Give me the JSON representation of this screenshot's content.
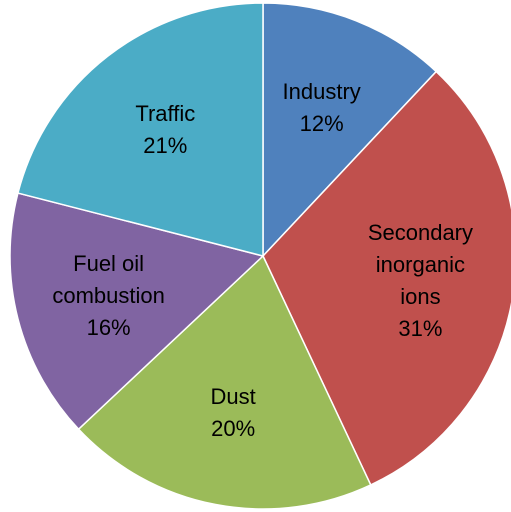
{
  "chart_data": {
    "type": "pie",
    "categories": [
      "Industry",
      "Secondary\ninorganic\nions",
      "Dust",
      "Fuel oil\ncombustion",
      "Traffic"
    ],
    "values": [
      12,
      31,
      20,
      16,
      21
    ],
    "value_labels": [
      "12%",
      "31%",
      "20%",
      "16%",
      "21%"
    ],
    "colors": [
      "#4f81bd",
      "#c0504d",
      "#9bbb59",
      "#8064a2",
      "#4bacc6"
    ]
  }
}
